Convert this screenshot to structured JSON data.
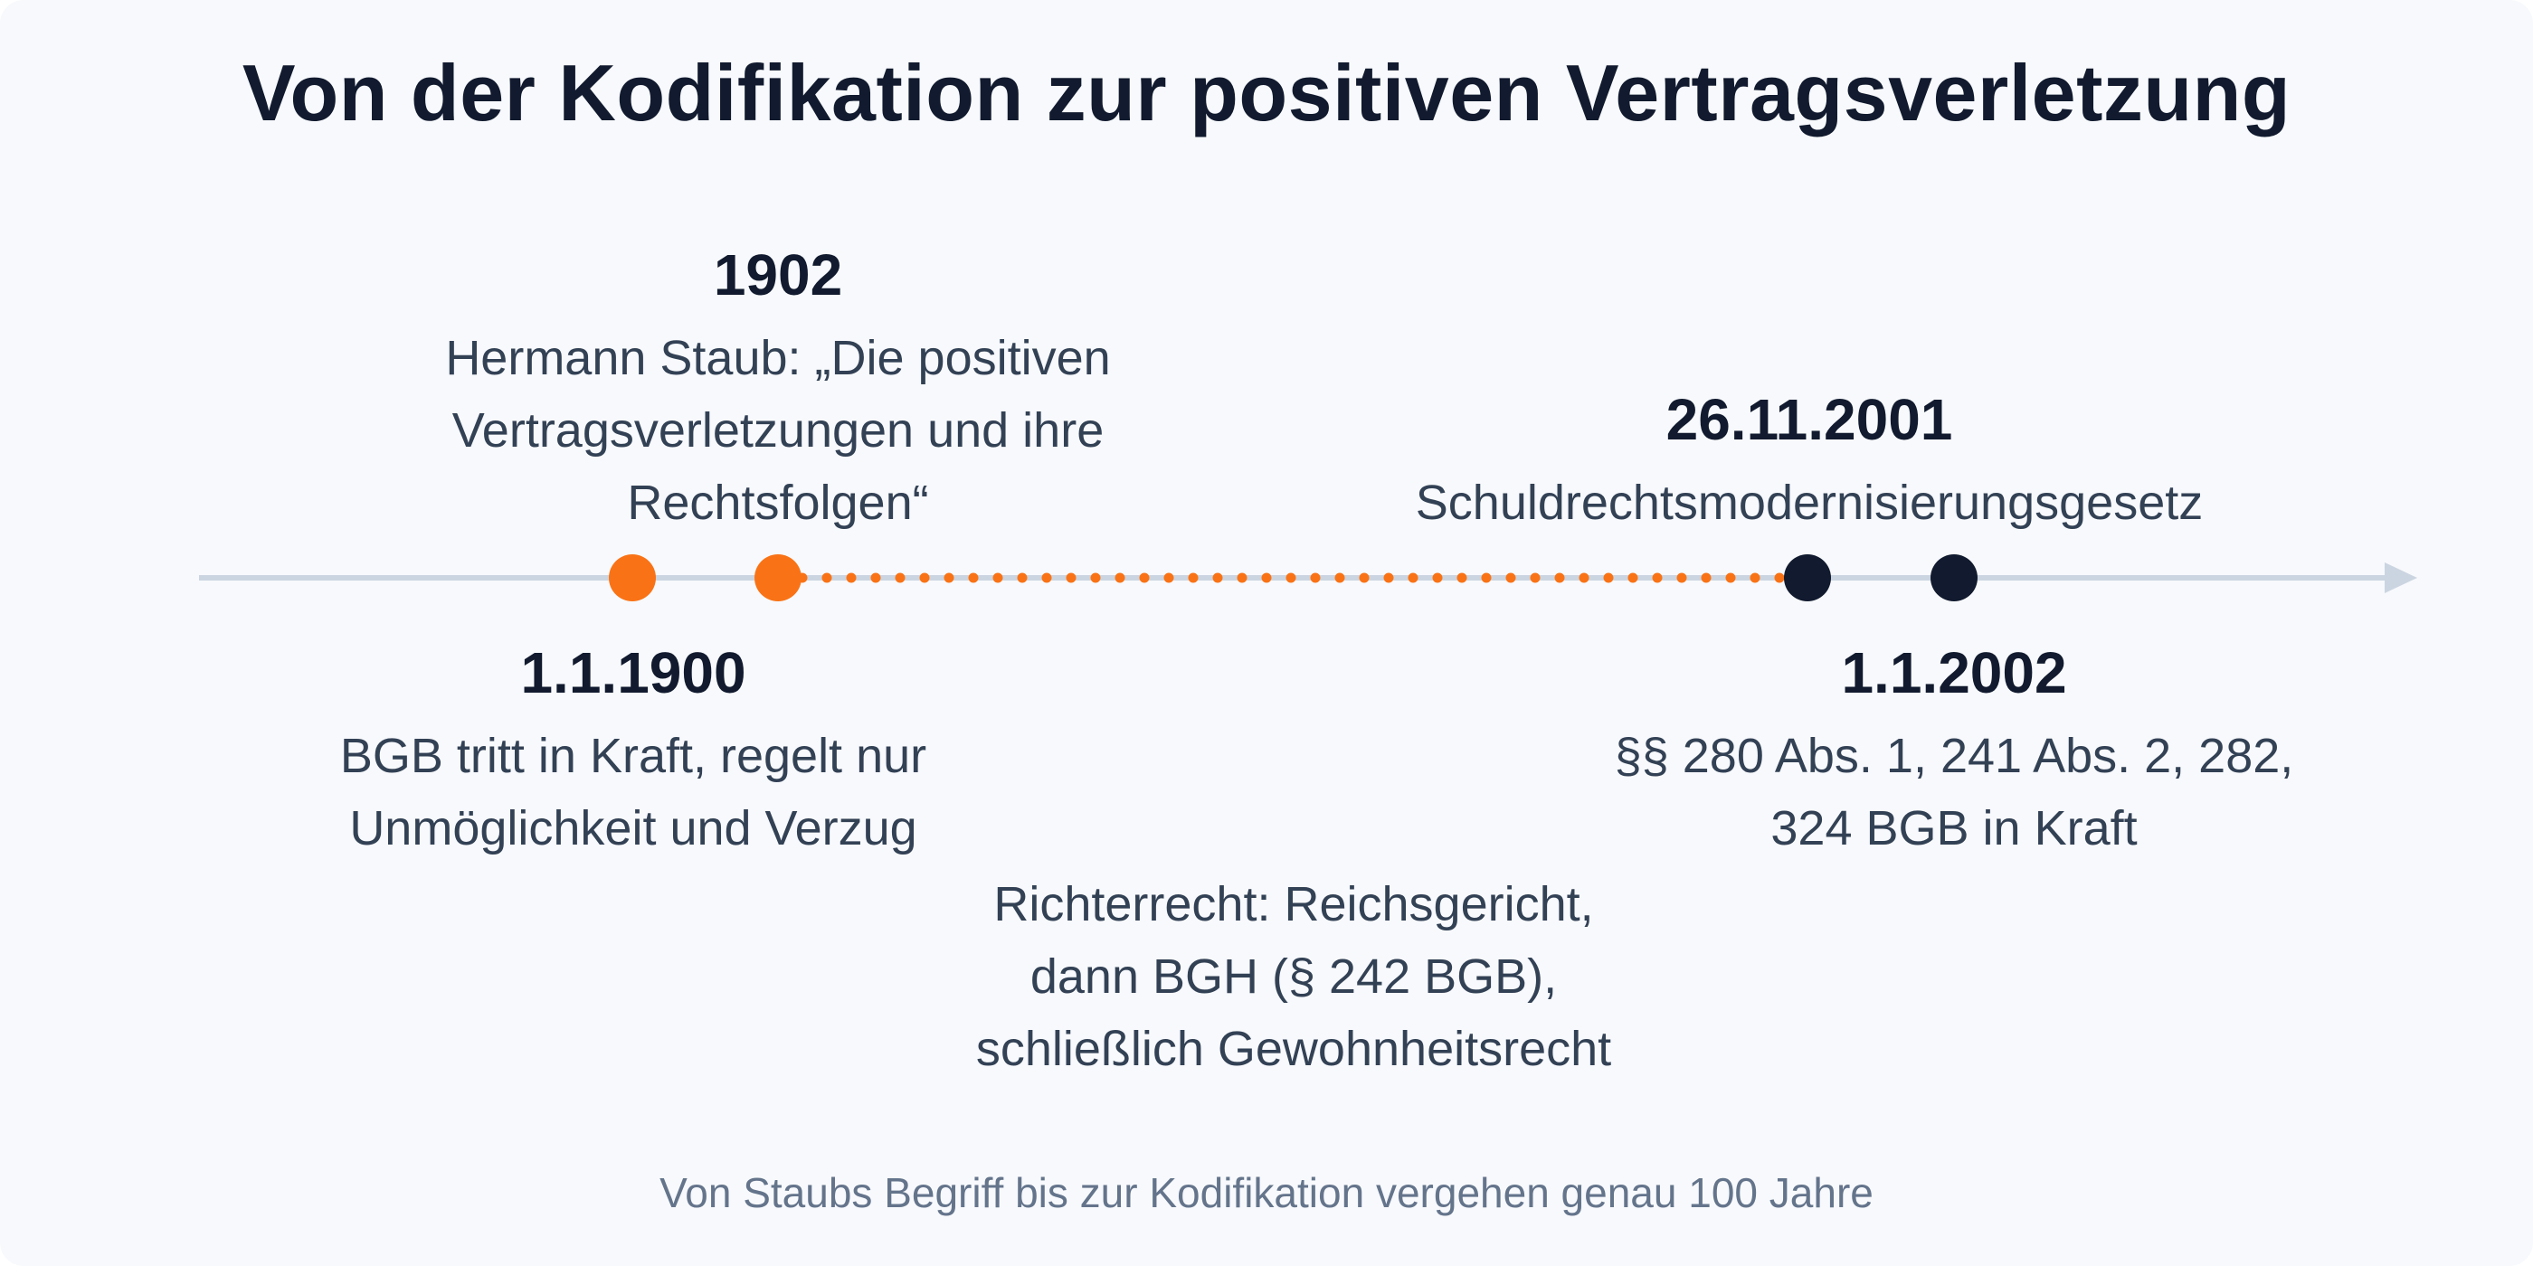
{
  "title": "Von der Kodifikation zur positiven Vertragsverletzung",
  "colors": {
    "background": "#f7f9fc",
    "axis": "#cbd5e1",
    "accent_orange": "#f97316",
    "dark": "#111a2e",
    "text": "#334155",
    "muted": "#64748b"
  },
  "events": [
    {
      "id": "bgb-1900",
      "date": "1.1.1900",
      "description": "BGB tritt in Kraft, regelt nur\nUnmöglichkeit und Verzug",
      "color": "orange",
      "label_side": "below"
    },
    {
      "id": "staub-1902",
      "date": "1902",
      "description": "Hermann Staub: „Die positiven\nVertragsverletzungen und ihre\nRechtsfolgen“",
      "color": "orange",
      "label_side": "above"
    },
    {
      "id": "smg-2001",
      "date": "26.11.2001",
      "description": "Schuldrechtsmodernisierungsgesetz",
      "color": "dark",
      "label_side": "above"
    },
    {
      "id": "inkraft-2002",
      "date": "1.1.2002",
      "description": "§§ 280 Abs. 1, 241 Abs. 2, 282,\n324 BGB in Kraft",
      "color": "dark",
      "label_side": "below"
    }
  ],
  "span_label": "Richterrecht: Reichsgericht,\ndann BGH (§ 242 BGB),\nschließlich Gewohnheitsrecht",
  "footnote": "Von Staubs Begriff bis zur Kodifikation vergehen genau 100 Jahre"
}
